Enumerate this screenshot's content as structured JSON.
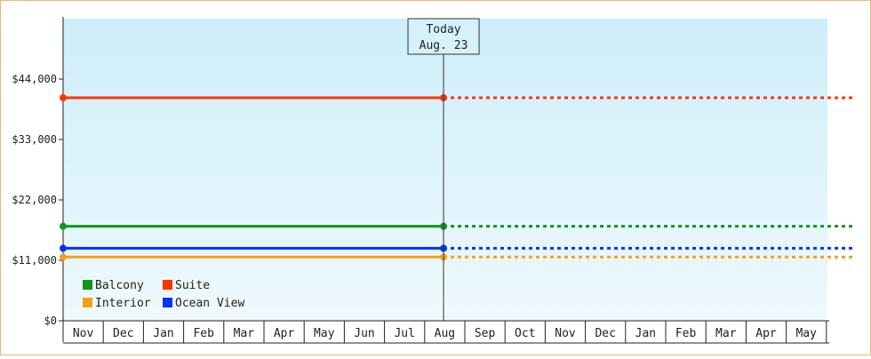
{
  "chart_data": {
    "type": "line",
    "title": "",
    "xlabel": "",
    "ylabel": "",
    "ylim": [
      0,
      55000
    ],
    "y_ticks": [
      0,
      11000,
      22000,
      33000,
      44000
    ],
    "y_tick_labels": [
      "$0",
      "$11,000",
      "$22,000",
      "$33,000",
      "$44,000"
    ],
    "months": [
      "Nov",
      "Dec",
      "Jan",
      "Feb",
      "Mar",
      "Apr",
      "May",
      "Jun",
      "Jul",
      "Aug",
      "Sep",
      "Oct",
      "Nov",
      "Dec",
      "Jan",
      "Feb",
      "Mar",
      "Apr",
      "May"
    ],
    "today": {
      "line1": "Today",
      "line2": "Aug. 23",
      "month_index": 9.47
    },
    "legend_position": "bottom-left",
    "grid": false,
    "series": [
      {
        "name": "Balcony",
        "color": "#109618",
        "value": 17200
      },
      {
        "name": "Suite",
        "color": "#ff3300",
        "value": 40600
      },
      {
        "name": "Interior",
        "color": "#f5a01a",
        "value": 11600
      },
      {
        "name": "Ocean View",
        "color": "#0033ff",
        "value": 13200
      }
    ],
    "legend_order": [
      "Balcony",
      "Suite",
      "Interior",
      "Ocean View"
    ],
    "background_gradient": [
      "#cdeefa",
      "#eff9fd"
    ]
  }
}
